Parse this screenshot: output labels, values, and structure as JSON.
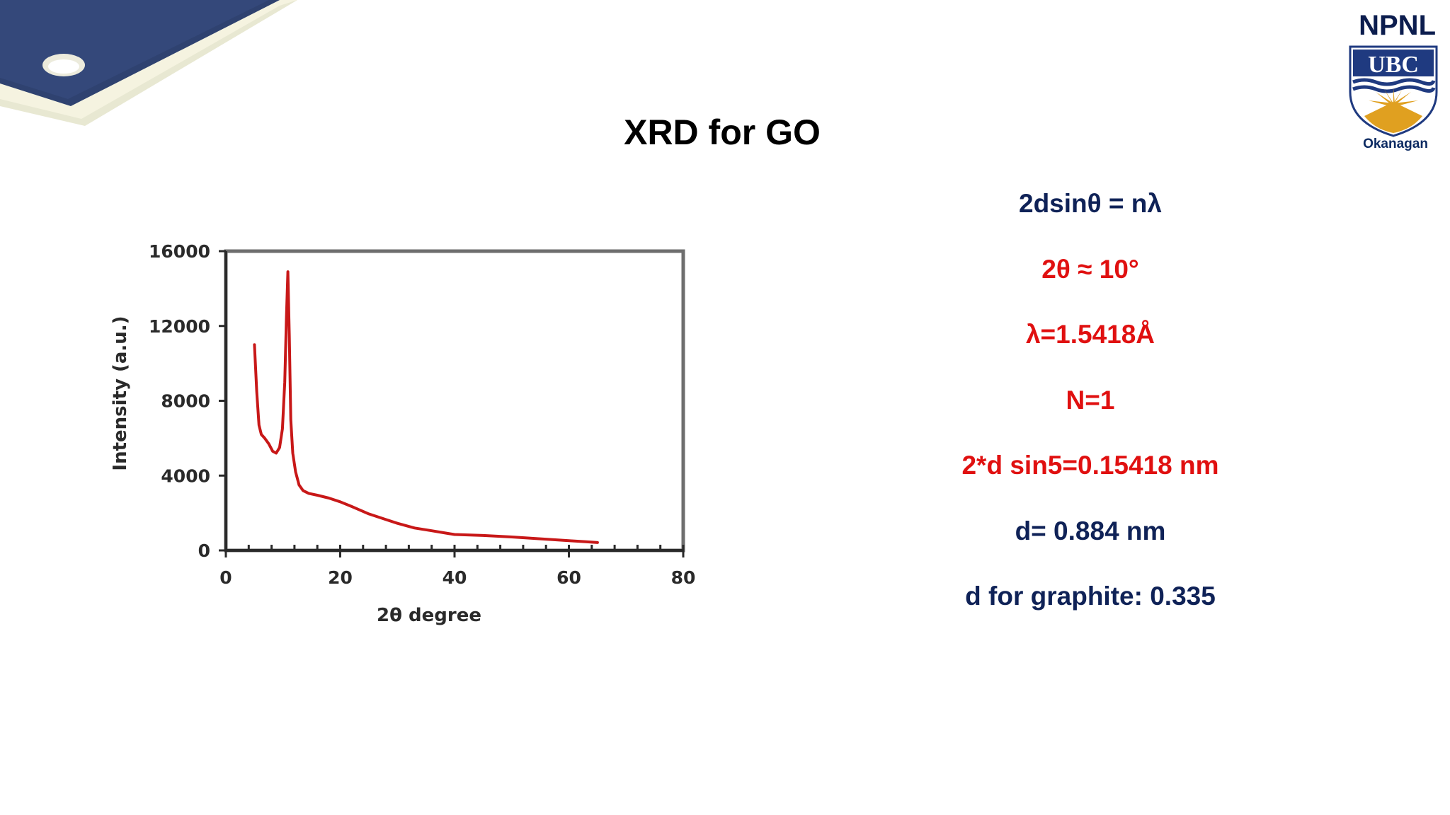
{
  "header": {
    "lab": "NPNL",
    "logo_text": "UBC",
    "logo_caption": "Okanagan"
  },
  "slide": {
    "title": "XRD for GO"
  },
  "equations": [
    {
      "text": "2dsinθ = nλ",
      "color": "#0f2257"
    },
    {
      "text": "2θ ≈ 10°",
      "color": "#e01010"
    },
    {
      "text": "λ=1.5418Å",
      "color": "#e01010"
    },
    {
      "text": "N=1",
      "color": "#e01010"
    },
    {
      "text": "2*d sin5=0.15418 nm",
      "color": "#e01010"
    },
    {
      "text": "d= 0.884 nm",
      "color": "#0f2257"
    },
    {
      "text": "d for graphite: 0.335",
      "color": "#0f2257"
    }
  ],
  "chart_data": {
    "type": "line",
    "xlabel": "2θ degree",
    "ylabel": "Intensity (a.u.)",
    "xlim": [
      0,
      80
    ],
    "ylim": [
      0,
      16000
    ],
    "xticks": [
      "0",
      "20",
      "40",
      "60",
      "80"
    ],
    "yticks": [
      "0",
      "4000",
      "8000",
      "12000",
      "16000"
    ],
    "grid": false,
    "series": [
      {
        "color": "#c81818",
        "x": [
          5,
          5.4,
          5.8,
          6.2,
          6.8,
          7.5,
          8.2,
          8.8,
          9.4,
          9.9,
          10.3,
          10.6,
          10.85,
          11.1,
          11.35,
          11.7,
          12.2,
          12.8,
          13.5,
          14.5,
          16,
          18,
          20,
          22,
          25,
          28,
          30,
          33,
          36,
          38,
          40,
          45,
          50,
          55,
          60,
          63,
          65
        ],
        "y": [
          11000,
          8500,
          6700,
          6200,
          6000,
          5700,
          5300,
          5200,
          5500,
          6500,
          9000,
          12500,
          14900,
          11500,
          7000,
          5200,
          4200,
          3500,
          3200,
          3050,
          2950,
          2800,
          2600,
          2350,
          1950,
          1650,
          1450,
          1200,
          1050,
          950,
          850,
          800,
          720,
          620,
          520,
          460,
          420
        ]
      }
    ]
  }
}
